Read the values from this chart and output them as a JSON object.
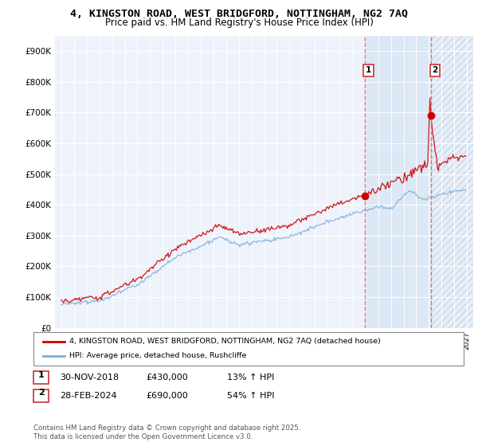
{
  "title_line1": "4, KINGSTON ROAD, WEST BRIDGFORD, NOTTINGHAM, NG2 7AQ",
  "title_line2": "Price paid vs. HM Land Registry's House Price Index (HPI)",
  "ylim": [
    0,
    950000
  ],
  "yticks": [
    0,
    100000,
    200000,
    300000,
    400000,
    500000,
    600000,
    700000,
    800000,
    900000
  ],
  "ytick_labels": [
    "£0",
    "£100K",
    "£200K",
    "£300K",
    "£400K",
    "£500K",
    "£600K",
    "£700K",
    "£800K",
    "£900K"
  ],
  "xlim_start": 1994.5,
  "xlim_end": 2027.5,
  "transaction1_date": 2018.92,
  "transaction1_price": 430000,
  "transaction2_date": 2024.17,
  "transaction2_price": 690000,
  "transaction1_text": "30-NOV-2018",
  "transaction1_amount": "£430,000",
  "transaction1_hpi": "13% ↑ HPI",
  "transaction2_text": "28-FEB-2024",
  "transaction2_amount": "£690,000",
  "transaction2_hpi": "54% ↑ HPI",
  "line1_color": "#cc0000",
  "line2_color": "#7aaddb",
  "background_color": "#eef2fb",
  "shaded_color": "#dce8f5",
  "legend_line1": "4, KINGSTON ROAD, WEST BRIDGFORD, NOTTINGHAM, NG2 7AQ (detached house)",
  "legend_line2": "HPI: Average price, detached house, Rushcliffe",
  "footer": "Contains HM Land Registry data © Crown copyright and database right 2025.\nThis data is licensed under the Open Government Licence v3.0.",
  "vline_color": "#e87070"
}
